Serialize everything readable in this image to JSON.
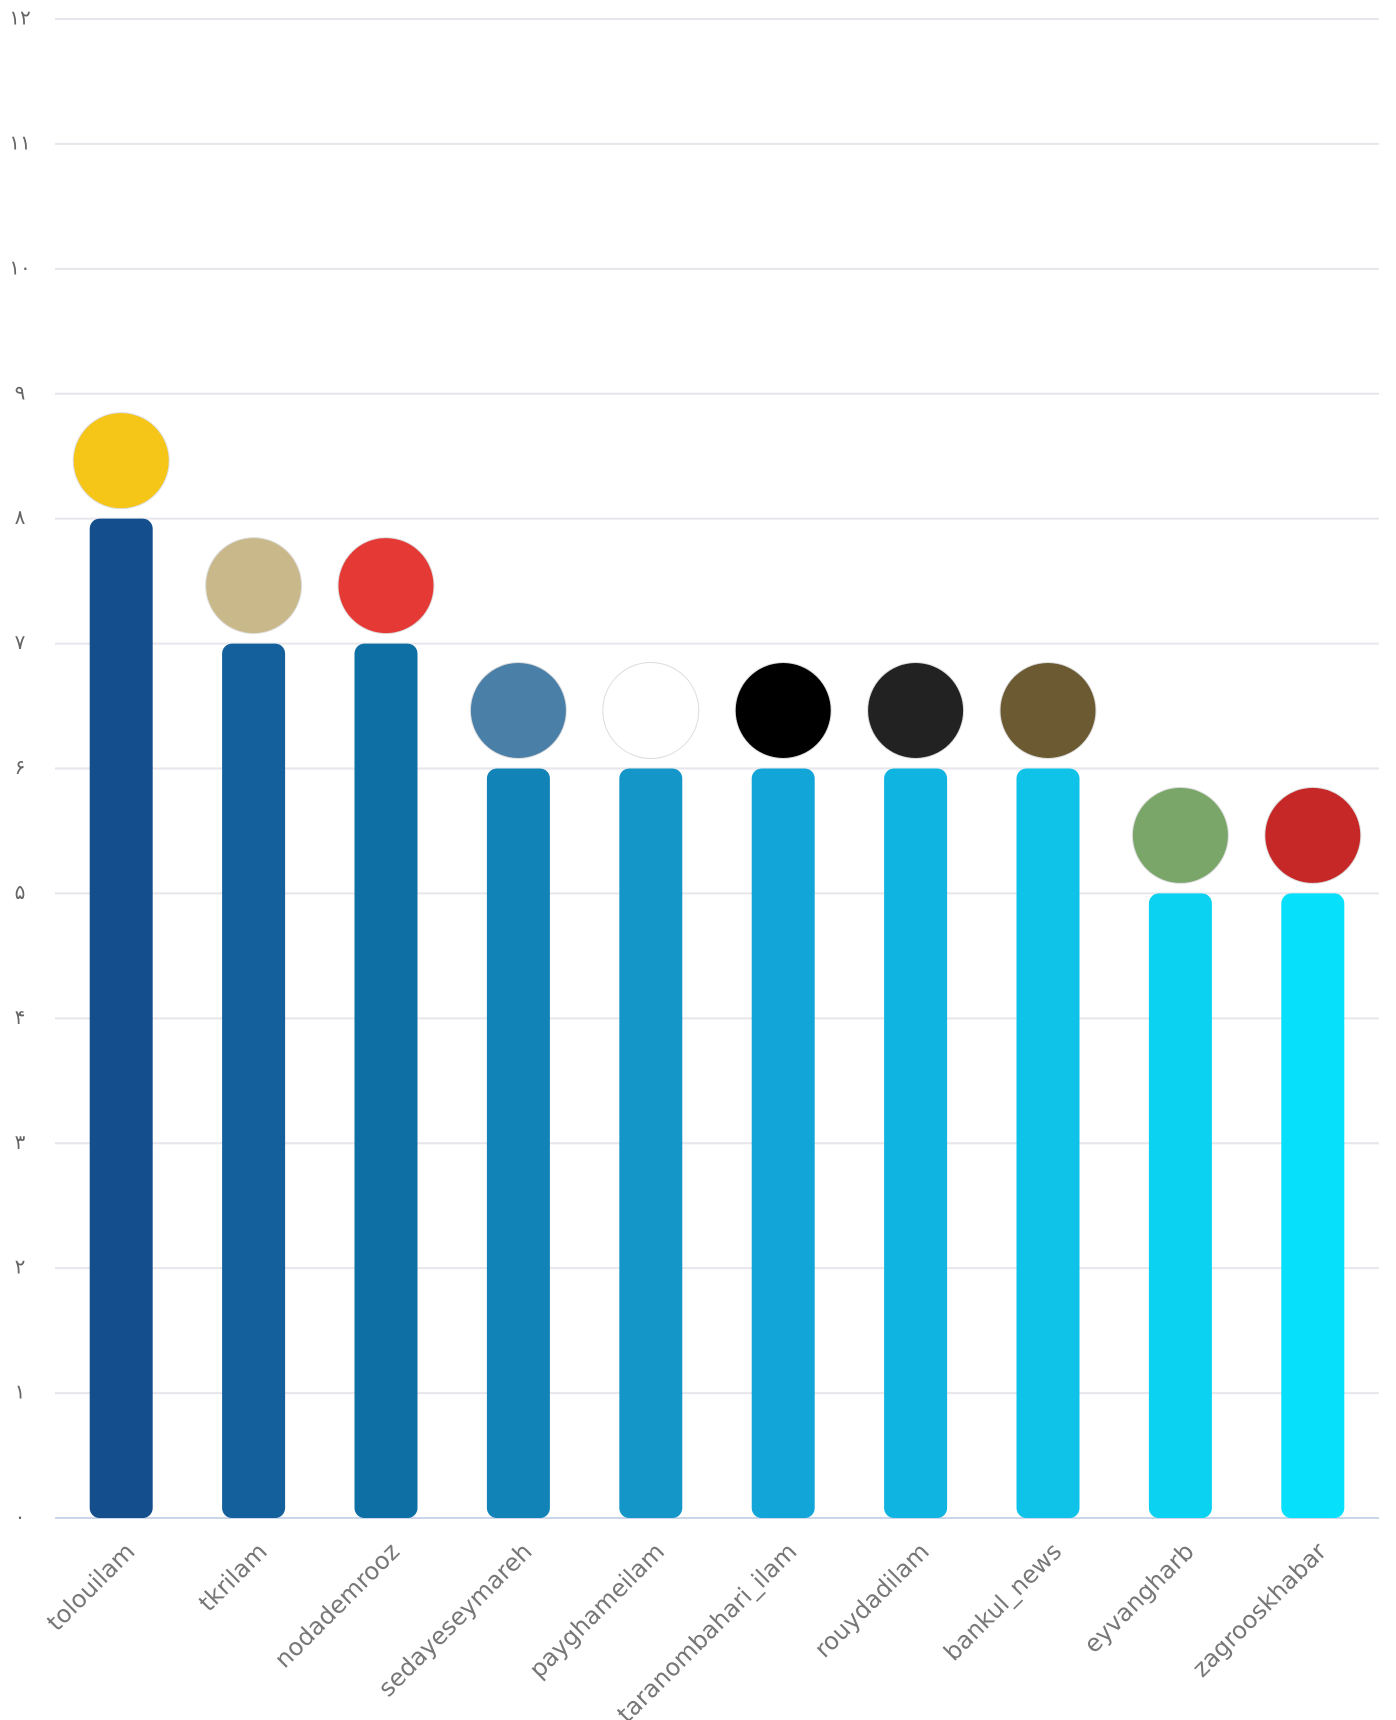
{
  "chart_data": {
    "type": "bar",
    "categories": [
      "tolouilam",
      "tkrilam",
      "nodademrooz",
      "sedayeseymareh",
      "payghameilam",
      "taranombahari_ilam",
      "rouydadilam",
      "bankul_news",
      "eyvangharb",
      "zagrooskhabar"
    ],
    "values": [
      8,
      7,
      7,
      6,
      6,
      6,
      6,
      6,
      5,
      5
    ],
    "colors": [
      "#154e8c",
      "#13609c",
      "#0e6fa5",
      "#1283b6",
      "#1496c8",
      "#12a6d8",
      "#0fb4e0",
      "#0ec2e8",
      "#0ad2f0",
      "#06e0fa"
    ],
    "ylim": [
      0,
      12
    ],
    "yticks": [
      {
        "value": 0,
        "label": "۰"
      },
      {
        "value": 1,
        "label": "۱"
      },
      {
        "value": 2,
        "label": "۲"
      },
      {
        "value": 3,
        "label": "۳"
      },
      {
        "value": 4,
        "label": "۴"
      },
      {
        "value": 5,
        "label": "۵"
      },
      {
        "value": 6,
        "label": "۶"
      },
      {
        "value": 7,
        "label": "۷"
      },
      {
        "value": 8,
        "label": "۸"
      },
      {
        "value": 9,
        "label": "۹"
      },
      {
        "value": 10,
        "label": "۱۰"
      },
      {
        "value": 11,
        "label": "۱۱"
      },
      {
        "value": 12,
        "label": "۱۲"
      }
    ],
    "grid": true
  }
}
